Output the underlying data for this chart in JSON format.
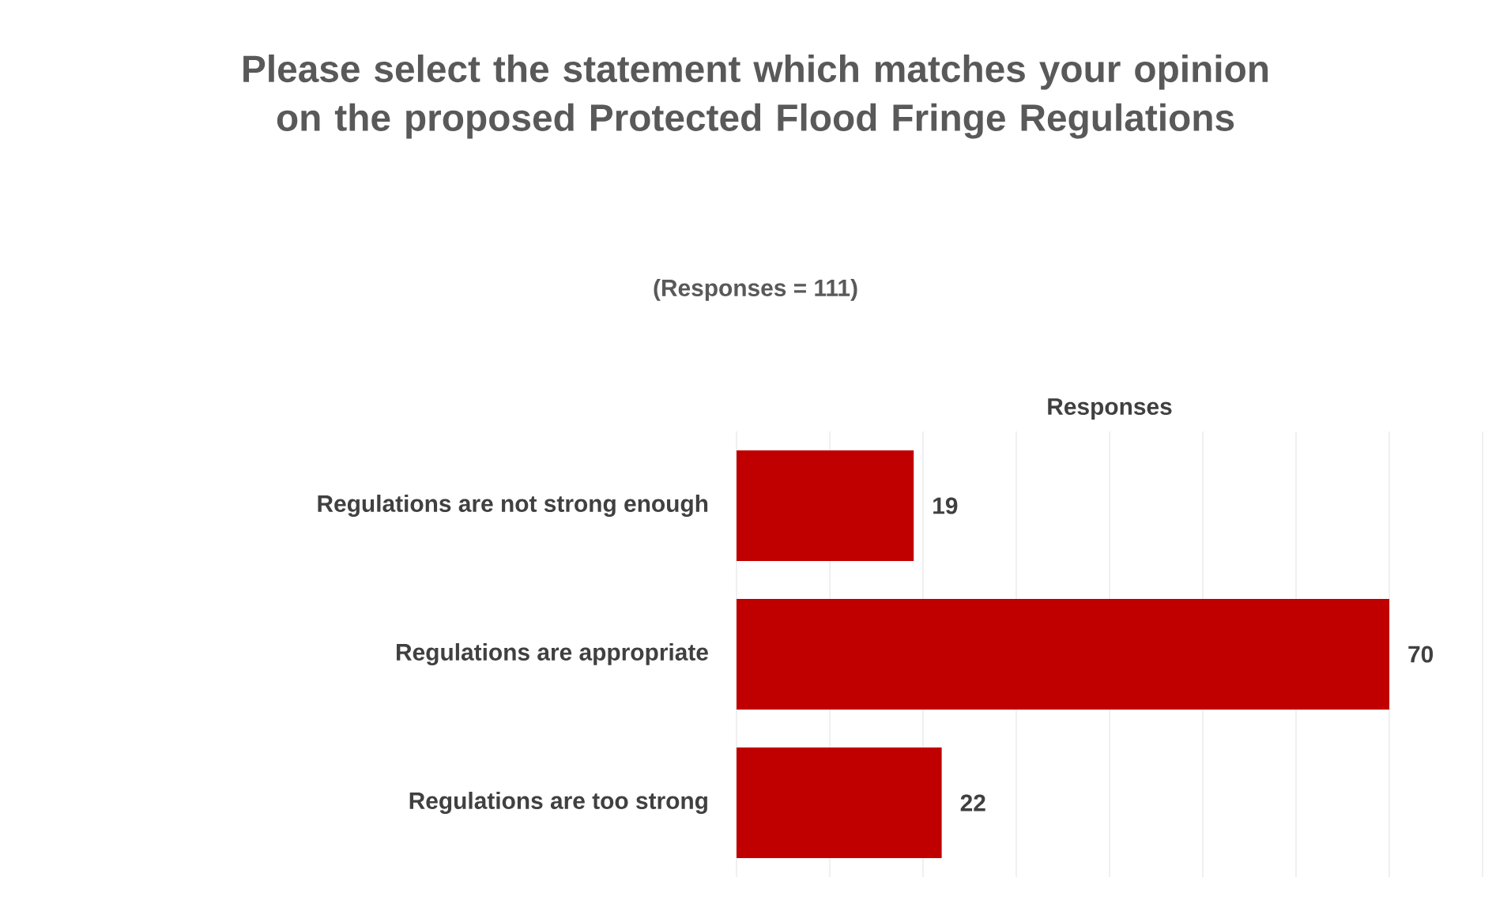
{
  "chart_data": {
    "type": "bar",
    "orientation": "horizontal",
    "title": "Please select the statement which matches your opinion on the proposed Protected Flood Fringe Regulations",
    "subtitle": "(Responses = 111)",
    "xlabel": "Responses",
    "categories": [
      "Regulations are not strong enough",
      "Regulations are appropriate",
      "Regulations are too strong"
    ],
    "values": [
      19,
      70,
      22
    ],
    "color": "#c00000",
    "xlim": [
      0,
      80
    ],
    "xticks": [
      {
        "value": 0,
        "label": null
      },
      {
        "value": 10,
        "label": null
      },
      {
        "value": 20,
        "label": null
      },
      {
        "value": 30,
        "label": null
      },
      {
        "value": 40,
        "label": null
      },
      {
        "value": 50,
        "label": null
      },
      {
        "value": 60,
        "label": null
      },
      {
        "value": 70,
        "label": null
      },
      {
        "value": 80,
        "label": null
      }
    ],
    "grid": "x",
    "tick_labels": "y",
    "data_labels": true
  }
}
